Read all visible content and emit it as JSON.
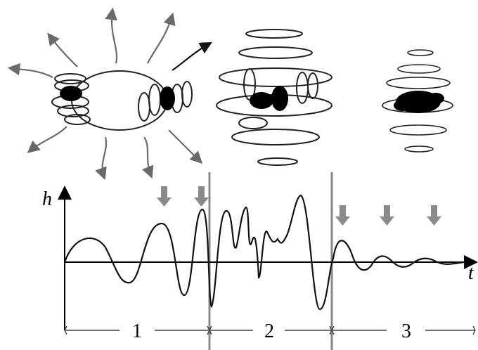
{
  "axis": {
    "y_label": "h",
    "x_label": "t"
  },
  "phases": [
    {
      "label": "1"
    },
    {
      "label": "2"
    },
    {
      "label": "3"
    }
  ]
}
